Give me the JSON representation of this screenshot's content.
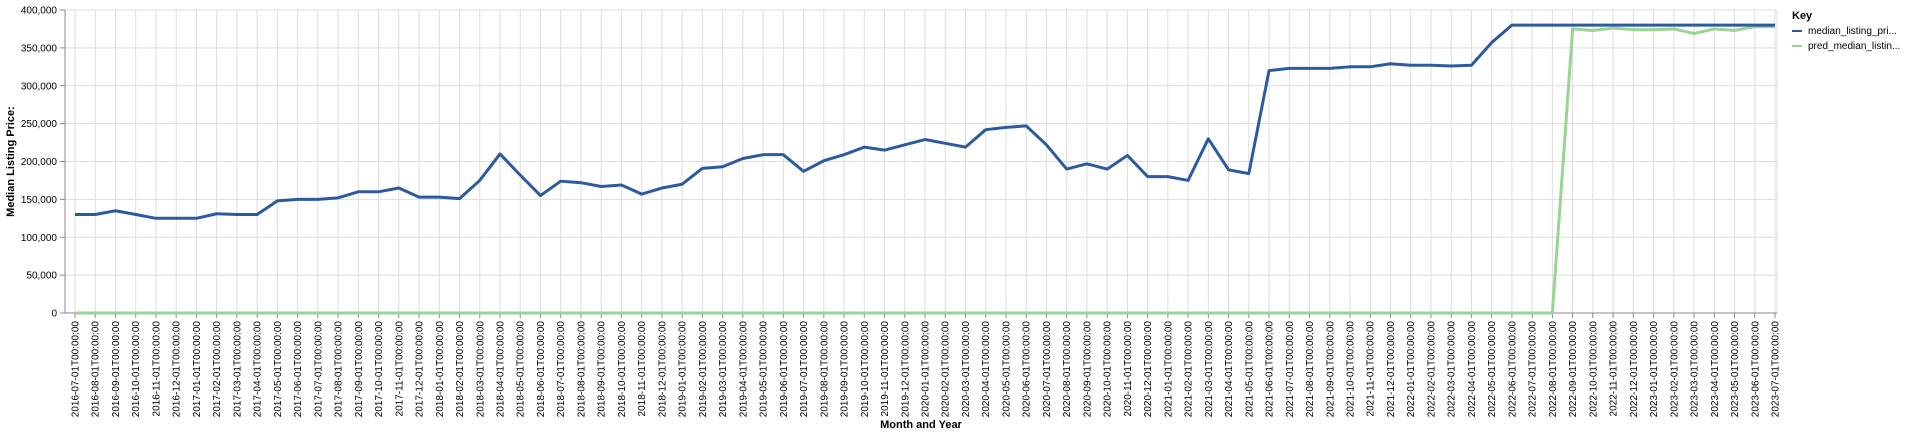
{
  "chart_data": {
    "type": "line",
    "xlabel": "Month and Year",
    "ylabel": "Median Listing Price:",
    "ylim": [
      0,
      400000
    ],
    "y_ticks": [
      "0",
      "50,000",
      "100,000",
      "150,000",
      "200,000",
      "250,000",
      "300,000",
      "350,000",
      "400,000"
    ],
    "y_tick_values": [
      0,
      50000,
      100000,
      150000,
      200000,
      250000,
      300000,
      350000,
      400000
    ],
    "grid": true,
    "legend": {
      "title": "Key",
      "placement": "right"
    },
    "x": [
      "2016-07-01T00:00:00",
      "2016-08-01T00:00:00",
      "2016-09-01T00:00:00",
      "2016-10-01T00:00:00",
      "2016-11-01T00:00:00",
      "2016-12-01T00:00:00",
      "2017-01-01T00:00:00",
      "2017-02-01T00:00:00",
      "2017-03-01T00:00:00",
      "2017-04-01T00:00:00",
      "2017-05-01T00:00:00",
      "2017-06-01T00:00:00",
      "2017-07-01T00:00:00",
      "2017-08-01T00:00:00",
      "2017-09-01T00:00:00",
      "2017-10-01T00:00:00",
      "2017-11-01T00:00:00",
      "2017-12-01T00:00:00",
      "2018-01-01T00:00:00",
      "2018-02-01T00:00:00",
      "2018-03-01T00:00:00",
      "2018-04-01T00:00:00",
      "2018-05-01T00:00:00",
      "2018-06-01T00:00:00",
      "2018-07-01T00:00:00",
      "2018-08-01T00:00:00",
      "2018-09-01T00:00:00",
      "2018-10-01T00:00:00",
      "2018-11-01T00:00:00",
      "2018-12-01T00:00:00",
      "2019-01-01T00:00:00",
      "2019-02-01T00:00:00",
      "2019-03-01T00:00:00",
      "2019-04-01T00:00:00",
      "2019-05-01T00:00:00",
      "2019-06-01T00:00:00",
      "2019-07-01T00:00:00",
      "2019-08-01T00:00:00",
      "2019-09-01T00:00:00",
      "2019-10-01T00:00:00",
      "2019-11-01T00:00:00",
      "2019-12-01T00:00:00",
      "2020-01-01T00:00:00",
      "2020-02-01T00:00:00",
      "2020-03-01T00:00:00",
      "2020-04-01T00:00:00",
      "2020-05-01T00:00:00",
      "2020-06-01T00:00:00",
      "2020-07-01T00:00:00",
      "2020-08-01T00:00:00",
      "2020-09-01T00:00:00",
      "2020-10-01T00:00:00",
      "2020-11-01T00:00:00",
      "2020-12-01T00:00:00",
      "2021-01-01T00:00:00",
      "2021-02-01T00:00:00",
      "2021-03-01T00:00:00",
      "2021-04-01T00:00:00",
      "2021-05-01T00:00:00",
      "2021-06-01T00:00:00",
      "2021-07-01T00:00:00",
      "2021-08-01T00:00:00",
      "2021-09-01T00:00:00",
      "2021-10-01T00:00:00",
      "2021-11-01T00:00:00",
      "2021-12-01T00:00:00",
      "2022-01-01T00:00:00",
      "2022-02-01T00:00:00",
      "2022-03-01T00:00:00",
      "2022-04-01T00:00:00",
      "2022-05-01T00:00:00",
      "2022-06-01T00:00:00",
      "2022-07-01T00:00:00",
      "2022-08-01T00:00:00",
      "2022-09-01T00:00:00",
      "2022-10-01T00:00:00",
      "2022-11-01T00:00:00",
      "2022-12-01T00:00:00",
      "2023-01-01T00:00:00",
      "2023-02-01T00:00:00",
      "2023-03-01T00:00:00",
      "2023-04-01T00:00:00",
      "2023-05-01T00:00:00",
      "2023-06-01T00:00:00",
      "2023-07-01T00:00:00"
    ],
    "series": [
      {
        "name": "median_listing_pri...",
        "color": "#2c5aa0",
        "values": [
          130000,
          130000,
          135000,
          130000,
          125000,
          125000,
          125000,
          131000,
          130000,
          130000,
          148000,
          150000,
          150000,
          152000,
          160000,
          160000,
          165000,
          153000,
          153000,
          151000,
          175000,
          210000,
          182000,
          155000,
          174000,
          172000,
          167000,
          169000,
          157000,
          165000,
          170000,
          191000,
          193000,
          204000,
          209000,
          209000,
          187000,
          201000,
          209000,
          219000,
          215000,
          222000,
          229000,
          224000,
          219000,
          242000,
          245000,
          247000,
          222000,
          190000,
          197000,
          190000,
          208000,
          180000,
          180000,
          175000,
          230000,
          189000,
          184000,
          320000,
          323000,
          323000,
          323000,
          325000,
          325000,
          329000,
          327000,
          327000,
          326000,
          327000,
          357000,
          380000,
          380000,
          380000,
          380000,
          380000,
          380000,
          380000,
          380000,
          380000,
          380000,
          380000,
          380000,
          380000,
          380000
        ]
      },
      {
        "name": "pred_median_listin...",
        "color": "#98d594",
        "values": [
          0,
          0,
          0,
          0,
          0,
          0,
          0,
          0,
          0,
          0,
          0,
          0,
          0,
          0,
          0,
          0,
          0,
          0,
          0,
          0,
          0,
          0,
          0,
          0,
          0,
          0,
          0,
          0,
          0,
          0,
          0,
          0,
          0,
          0,
          0,
          0,
          0,
          0,
          0,
          0,
          0,
          0,
          0,
          0,
          0,
          0,
          0,
          0,
          0,
          0,
          0,
          0,
          0,
          0,
          0,
          0,
          0,
          0,
          0,
          0,
          0,
          0,
          0,
          0,
          0,
          0,
          0,
          0,
          0,
          0,
          0,
          0,
          0,
          0,
          375000,
          373000,
          376000,
          374000,
          374000,
          375000,
          369000,
          375000,
          373000,
          378000,
          378000
        ]
      }
    ]
  }
}
